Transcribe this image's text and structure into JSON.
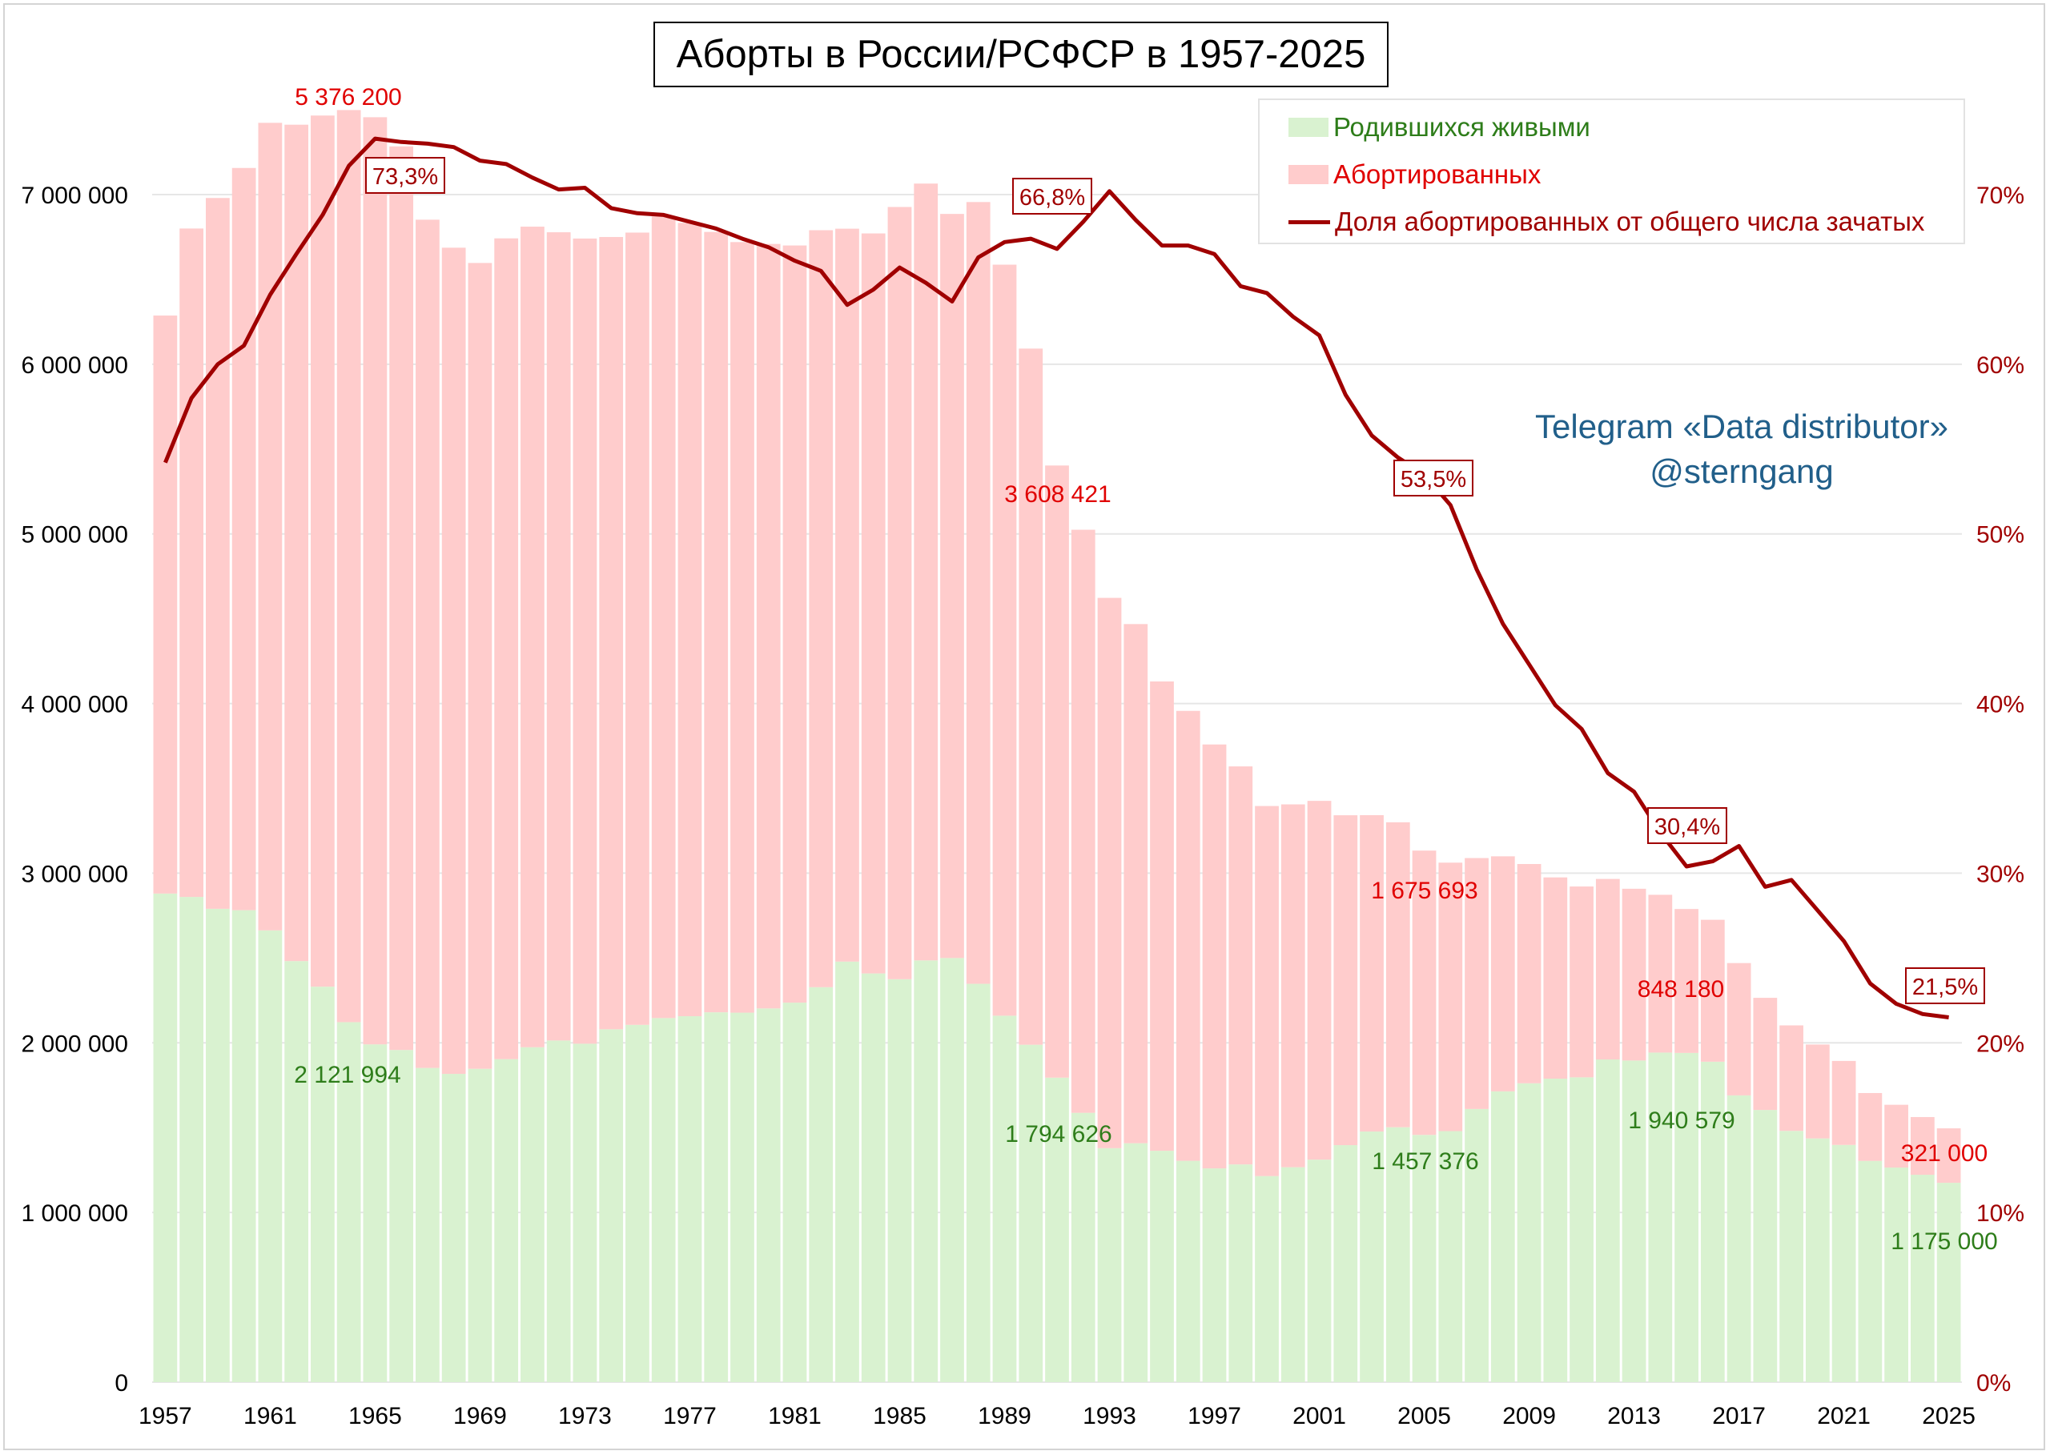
{
  "chart_data": {
    "type": "bar",
    "title": "Аборты в России/РСФСР в 1957-2025",
    "x": [
      1957,
      1958,
      1959,
      1960,
      1961,
      1962,
      1963,
      1964,
      1965,
      1966,
      1967,
      1968,
      1969,
      1970,
      1971,
      1972,
      1973,
      1974,
      1975,
      1976,
      1977,
      1978,
      1979,
      1980,
      1981,
      1982,
      1983,
      1984,
      1985,
      1986,
      1987,
      1988,
      1989,
      1990,
      1991,
      1992,
      1993,
      1994,
      1995,
      1996,
      1997,
      1998,
      1999,
      2000,
      2001,
      2002,
      2003,
      2004,
      2005,
      2006,
      2007,
      2008,
      2009,
      2010,
      2011,
      2012,
      2013,
      2014,
      2015,
      2016,
      2017,
      2018,
      2019,
      2020,
      2021,
      2022,
      2023,
      2024,
      2025
    ],
    "x_tick_labels": [
      "1957",
      "1961",
      "1965",
      "1969",
      "1973",
      "1977",
      "1981",
      "1985",
      "1989",
      "1993",
      "1997",
      "2001",
      "2005",
      "2009",
      "2013",
      "2017",
      "2021",
      "2025"
    ],
    "series": [
      {
        "name": "Родившихся живыми",
        "color": "#d9f2d0",
        "stack": true,
        "values": [
          2880000,
          2860000,
          2790000,
          2782000,
          2663000,
          2482000,
          2331000,
          2121994,
          1991000,
          1958000,
          1852000,
          1817000,
          1847000,
          1904000,
          1974000,
          2014000,
          1995000,
          2080000,
          2106000,
          2146000,
          2157000,
          2180000,
          2178000,
          2203000,
          2237000,
          2328000,
          2479000,
          2409000,
          2375000,
          2486000,
          2500000,
          2348000,
          2160000,
          1988858,
          1794626,
          1587644,
          1378983,
          1408159,
          1363806,
          1304638,
          1259943,
          1283292,
          1214689,
          1266800,
          1311604,
          1396967,
          1477301,
          1502477,
          1457376,
          1479637,
          1610122,
          1713947,
          1761687,
          1788948,
          1796629,
          1902084,
          1895822,
          1942683,
          1940579,
          1888729,
          1690307,
          1604344,
          1481074,
          1436514,
          1398253,
          1304087,
          1264938,
          1222408,
          1175000
        ]
      },
      {
        "name": "Абортированных",
        "color": "#ffcccc",
        "stack": true,
        "values": [
          3407000,
          3940000,
          4190000,
          4375000,
          4760000,
          4930000,
          5135000,
          5376200,
          5465000,
          5326000,
          5000000,
          4870000,
          4750000,
          4838000,
          4837000,
          4764000,
          4746000,
          4670000,
          4670000,
          4726000,
          4676000,
          4600000,
          4542000,
          4506000,
          4463000,
          4462000,
          4320000,
          4362000,
          4552000,
          4579000,
          4386000,
          4608000,
          4427000,
          4103425,
          3608421,
          3436695,
          3244000,
          3060237,
          2766362,
          2652038,
          2498716,
          2346138,
          2181153,
          2138800,
          2114700,
          1944481,
          1864647,
          1797567,
          1675693,
          1582398,
          1479010,
          1385600,
          1292389,
          1186108,
          1124880,
          1063982,
          1012399,
          929963,
          848180,
          836611,
          779848,
          661045,
          621652,
          553500,
          495000,
          400000,
          370000,
          340000,
          321000
        ]
      },
      {
        "name": "Доля абортированных от общего числа зачатых",
        "color": "#a00000",
        "axis": "right",
        "type": "line",
        "values": [
          54.2,
          58.0,
          60.0,
          61.1,
          64.1,
          66.5,
          68.8,
          71.7,
          73.3,
          73.1,
          73.0,
          72.8,
          72.0,
          71.8,
          71.0,
          70.3,
          70.4,
          69.2,
          68.9,
          68.8,
          68.4,
          68.0,
          67.4,
          66.9,
          66.1,
          65.5,
          63.5,
          64.4,
          65.7,
          64.8,
          63.7,
          66.3,
          67.2,
          67.4,
          66.8,
          68.4,
          70.2,
          68.5,
          67.0,
          67.0,
          66.5,
          64.6,
          64.2,
          62.8,
          61.7,
          58.2,
          55.8,
          54.5,
          53.5,
          51.7,
          47.9,
          44.7,
          42.3,
          39.9,
          38.5,
          35.9,
          34.8,
          32.4,
          30.4,
          30.7,
          31.6,
          29.2,
          29.6,
          27.8,
          26.0,
          23.5,
          22.3,
          21.7,
          21.5
        ]
      }
    ],
    "y_left": {
      "min": 0,
      "max": 7000000,
      "ticks": [
        "0",
        "1 000 000",
        "2 000 000",
        "3 000 000",
        "4 000 000",
        "5 000 000",
        "6 000 000",
        "7 000 000"
      ]
    },
    "y_right": {
      "min": 0,
      "max": 70,
      "unit": "%",
      "ticks": [
        "0%",
        "10%",
        "20%",
        "30%",
        "40%",
        "50%",
        "60%",
        "70%"
      ]
    },
    "grid": true,
    "legend_position": "top-right",
    "annotations": {
      "abort_labels": [
        {
          "year": 1964,
          "text": "5 376 200"
        },
        {
          "year": 1991,
          "text": "3 608 421"
        },
        {
          "year": 2005,
          "text": "1 675 693"
        },
        {
          "year": 2015,
          "text": "848 180"
        },
        {
          "year": 2025,
          "text": "321 000"
        }
      ],
      "birth_labels": [
        {
          "year": 1964,
          "text": "2 121 994"
        },
        {
          "year": 1991,
          "text": "1 794 626"
        },
        {
          "year": 2005,
          "text": "1 457 376"
        },
        {
          "year": 2015,
          "text": "1 940 579"
        },
        {
          "year": 2025,
          "text": "1 175 000"
        }
      ],
      "share_labels": [
        {
          "year": 1965,
          "text": "73,3%"
        },
        {
          "year": 1991,
          "text": "66,8%"
        },
        {
          "year": 2005,
          "text": "53,5%"
        },
        {
          "year": 2015,
          "text": "30,4%"
        },
        {
          "year": 2025,
          "text": "21,5%"
        }
      ]
    },
    "colors": {
      "birth_label": "#2e7d1a",
      "abort_label": "#e00000",
      "share_label": "#a00000",
      "axis_left": "#000000",
      "axis_right": "#a00000"
    }
  },
  "legend": {
    "births": "Родившихся живыми",
    "abortions": "Абортированных",
    "share": "Доля абортированных от общего числа зачатых"
  },
  "watermark": {
    "line1": "Telegram «Data distributor»",
    "line2": "@sterngang"
  }
}
